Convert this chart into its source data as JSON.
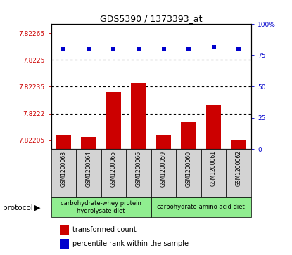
{
  "title": "GDS5390 / 1373393_at",
  "samples": [
    "GSM1200063",
    "GSM1200064",
    "GSM1200065",
    "GSM1200066",
    "GSM1200059",
    "GSM1200060",
    "GSM1200061",
    "GSM1200062"
  ],
  "transformed_counts": [
    7.82208,
    7.82207,
    7.82232,
    7.82237,
    7.82208,
    7.82215,
    7.82225,
    7.82205
  ],
  "percentile_ranks": [
    80,
    80,
    80,
    80,
    80,
    80,
    82,
    80
  ],
  "ylim_left": [
    7.822,
    7.8227
  ],
  "ylim_right": [
    0,
    100
  ],
  "yticks_left": [
    7.82205,
    7.8222,
    7.82235,
    7.8225,
    7.82265
  ],
  "ytick_labels_left": [
    "7.82205",
    "7.8222",
    "7.82235",
    "7.8225",
    "7.82265"
  ],
  "yticks_right": [
    0,
    25,
    50,
    75,
    100
  ],
  "ytick_labels_right": [
    "0",
    "25",
    "50",
    "75",
    "100%"
  ],
  "grid_values": [
    7.8225,
    7.82235,
    7.8222
  ],
  "bar_color": "#cc0000",
  "dot_color": "#0000cc",
  "protocol_groups": [
    {
      "label": "carbohydrate-whey protein\nhydrolysate diet",
      "samples_idx": [
        0,
        1,
        2,
        3
      ],
      "color": "#90ee90"
    },
    {
      "label": "carbohydrate-amino acid diet",
      "samples_idx": [
        4,
        5,
        6,
        7
      ],
      "color": "#90ee90"
    }
  ],
  "legend_items": [
    {
      "label": "transformed count",
      "color": "#cc0000"
    },
    {
      "label": "percentile rank within the sample",
      "color": "#0000cc"
    }
  ],
  "protocol_label": "protocol",
  "left_color": "#cc0000",
  "right_color": "#0000cc",
  "bar_width": 0.6,
  "sample_box_color": "#d3d3d3",
  "fig_bg": "#ffffff"
}
